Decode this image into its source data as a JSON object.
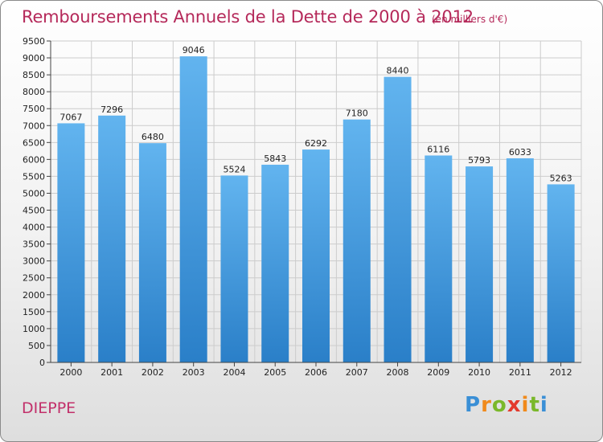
{
  "title": "Remboursements Annuels de la Dette de 2000 à 2012",
  "subtitle": "(en milliers d'€)",
  "place": "DIEPPE",
  "logo": {
    "text": "Proxiti"
  },
  "colors": {
    "title": "#b5295a",
    "bar_top": "#62b4ef",
    "bar_bottom": "#2a7fc8",
    "grid": "#cccccc"
  },
  "chart_data": {
    "type": "bar",
    "title": "Remboursements Annuels de la Dette de 2000 à 2012",
    "subtitle": "(en milliers d'€)",
    "categories": [
      "2000",
      "2001",
      "2002",
      "2003",
      "2004",
      "2005",
      "2006",
      "2007",
      "2008",
      "2009",
      "2010",
      "2011",
      "2012"
    ],
    "values": [
      7067,
      7296,
      6480,
      9046,
      5524,
      5843,
      6292,
      7180,
      8440,
      6116,
      5793,
      6033,
      5263
    ],
    "ylim": [
      0,
      9500
    ],
    "yticks": [
      0,
      500,
      1000,
      1500,
      2000,
      2500,
      3000,
      3500,
      4000,
      4500,
      5000,
      5500,
      6000,
      6500,
      7000,
      7500,
      8000,
      8500,
      9000,
      9500
    ],
    "grid": true,
    "data_labels": true,
    "xlabel": "",
    "ylabel": ""
  }
}
